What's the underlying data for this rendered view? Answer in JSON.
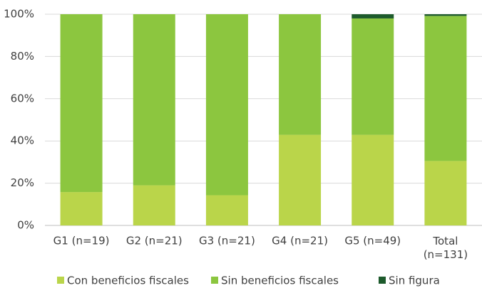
{
  "chart_data": {
    "type": "stacked_bar",
    "categories": [
      "G1 (n=19)",
      "G2 (n=21)",
      "G3 (n=21)",
      "G4 (n=21)",
      "G5 (n=49)",
      "Total (n=131)"
    ],
    "series": [
      {
        "name": "Con beneficios fiscales",
        "color": "#bad54a",
        "values": [
          15.8,
          19.0,
          14.3,
          42.9,
          42.9,
          30.5
        ]
      },
      {
        "name": "Sin beneficios fiscales",
        "color": "#8cc63f",
        "values": [
          84.2,
          81.0,
          85.7,
          57.1,
          55.1,
          68.7
        ]
      },
      {
        "name": "Sin figura",
        "color": "#1d5a2c",
        "values": [
          0,
          0,
          0,
          0,
          2.0,
          0.8
        ]
      }
    ],
    "ylim": [
      0,
      100
    ],
    "yticks": [
      {
        "value": 0,
        "label": "0%"
      },
      {
        "value": 20,
        "label": "20%"
      },
      {
        "value": 40,
        "label": "40%"
      },
      {
        "value": 60,
        "label": "60%"
      },
      {
        "value": 80,
        "label": "80%"
      },
      {
        "value": 100,
        "label": "100%"
      }
    ],
    "grid": true,
    "legend": "bottom"
  }
}
